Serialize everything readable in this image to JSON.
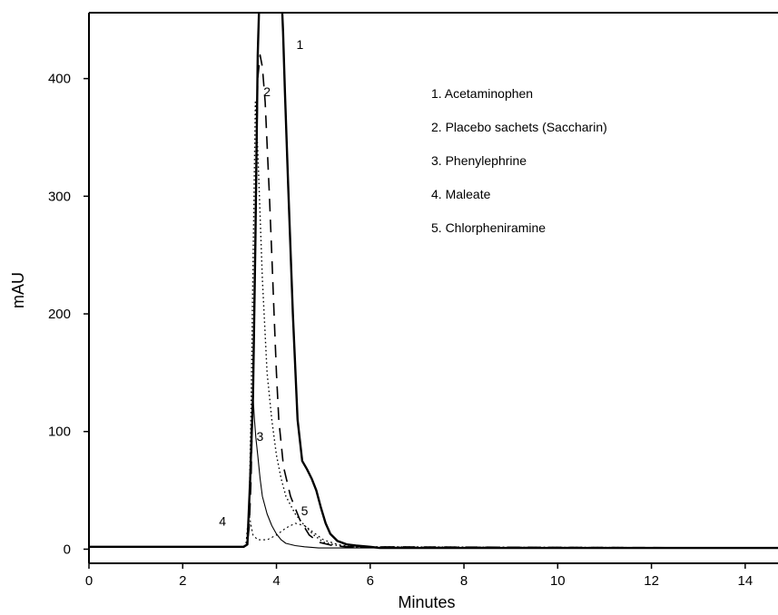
{
  "chart_data": {
    "type": "line",
    "title": "",
    "xlabel": "Minutes",
    "ylabel": "mAU",
    "xlim": [
      0,
      14.7
    ],
    "ylim": [
      -12,
      456
    ],
    "xticks": [
      "0",
      "2",
      "4",
      "6",
      "8",
      "10",
      "12",
      "14"
    ],
    "yticks": [
      "0",
      "100",
      "200",
      "300",
      "400"
    ],
    "grid": false,
    "legend_position": "top-right",
    "legend": [
      "1.  Acetaminophen",
      "2.  Placebo sachets (Saccharin)",
      "3.  Phenylephrine",
      "4.  Maleate",
      "5.  Chlorpheniramine"
    ],
    "peak_labels": [
      {
        "text": "1",
        "x": 4.5,
        "y": 425
      },
      {
        "text": "2",
        "x": 3.8,
        "y": 385
      },
      {
        "text": "3",
        "x": 3.65,
        "y": 92
      },
      {
        "text": "4",
        "x": 2.85,
        "y": 20
      },
      {
        "text": "5",
        "x": 4.6,
        "y": 29
      }
    ],
    "series": [
      {
        "id": "acetaminophen",
        "stroke": "#000000",
        "dash": "",
        "width": 2.4,
        "x": [
          0,
          3.3,
          3.38,
          3.44,
          3.5,
          3.55,
          3.6,
          3.63,
          3.66,
          3.7,
          3.75,
          3.85,
          3.95,
          4.05,
          4.12,
          4.14,
          4.18,
          4.25,
          4.35,
          4.45,
          4.55,
          4.65,
          4.75,
          4.85,
          4.95,
          5.05,
          5.15,
          5.3,
          5.5,
          5.7,
          6.0,
          6.2,
          14.7
        ],
        "y": [
          2,
          2,
          4,
          60,
          130,
          260,
          420,
          460,
          460,
          460,
          460,
          460,
          460,
          460,
          460,
          440,
          390,
          310,
          200,
          110,
          75,
          68,
          60,
          50,
          35,
          22,
          13,
          7,
          4,
          3,
          2,
          1,
          1
        ]
      },
      {
        "id": "placebo-saccharin",
        "stroke": "#000000",
        "dash": "14 9",
        "width": 1.6,
        "x": [
          0,
          3.3,
          3.38,
          3.42,
          3.46,
          3.5,
          3.55,
          3.6,
          3.65,
          3.7,
          3.76,
          3.85,
          3.9,
          3.95,
          4.0,
          4.05,
          4.15,
          4.3,
          4.5,
          4.7,
          4.9,
          5.2,
          5.5,
          14.7
        ],
        "y": [
          2,
          2,
          4,
          20,
          60,
          140,
          260,
          400,
          420,
          410,
          380,
          300,
          250,
          200,
          150,
          110,
          70,
          45,
          25,
          12,
          6,
          3,
          2,
          1
        ]
      },
      {
        "id": "phenylephrine",
        "stroke": "#000000",
        "dash": "",
        "width": 1.1,
        "x": [
          0,
          3.3,
          3.38,
          3.42,
          3.46,
          3.5,
          3.53,
          3.56,
          3.6,
          3.65,
          3.7,
          3.8,
          3.9,
          4.0,
          4.1,
          4.2,
          4.4,
          4.6,
          4.9,
          14.7
        ],
        "y": [
          2,
          2,
          5,
          40,
          100,
          130,
          110,
          95,
          80,
          60,
          45,
          30,
          20,
          13,
          8,
          5,
          3,
          2,
          1,
          1
        ]
      },
      {
        "id": "maleate",
        "stroke": "#000000",
        "dash": "2 3",
        "width": 1.1,
        "x": [
          0,
          3.3,
          3.35,
          3.38,
          3.42,
          3.45,
          3.5,
          3.6,
          3.8,
          4.0,
          4.2,
          4.4,
          4.6,
          4.8,
          5.0,
          5.3,
          5.6,
          14.7
        ],
        "y": [
          2,
          2,
          5,
          18,
          30,
          22,
          12,
          8,
          8,
          12,
          18,
          22,
          20,
          14,
          8,
          4,
          2,
          1
        ]
      },
      {
        "id": "chlorpheniramine",
        "stroke": "#000000",
        "dash": "1.5 3",
        "width": 1.4,
        "x": [
          0,
          3.3,
          3.38,
          3.42,
          3.46,
          3.5,
          3.55,
          3.6,
          3.7,
          3.8,
          3.9,
          4.0,
          4.1,
          4.2,
          4.4,
          4.6,
          4.8,
          5.0,
          5.3,
          5.6,
          14.7
        ],
        "y": [
          2,
          2,
          5,
          40,
          120,
          240,
          380,
          340,
          230,
          150,
          110,
          80,
          60,
          45,
          30,
          20,
          12,
          6,
          3,
          2,
          1
        ]
      }
    ]
  }
}
